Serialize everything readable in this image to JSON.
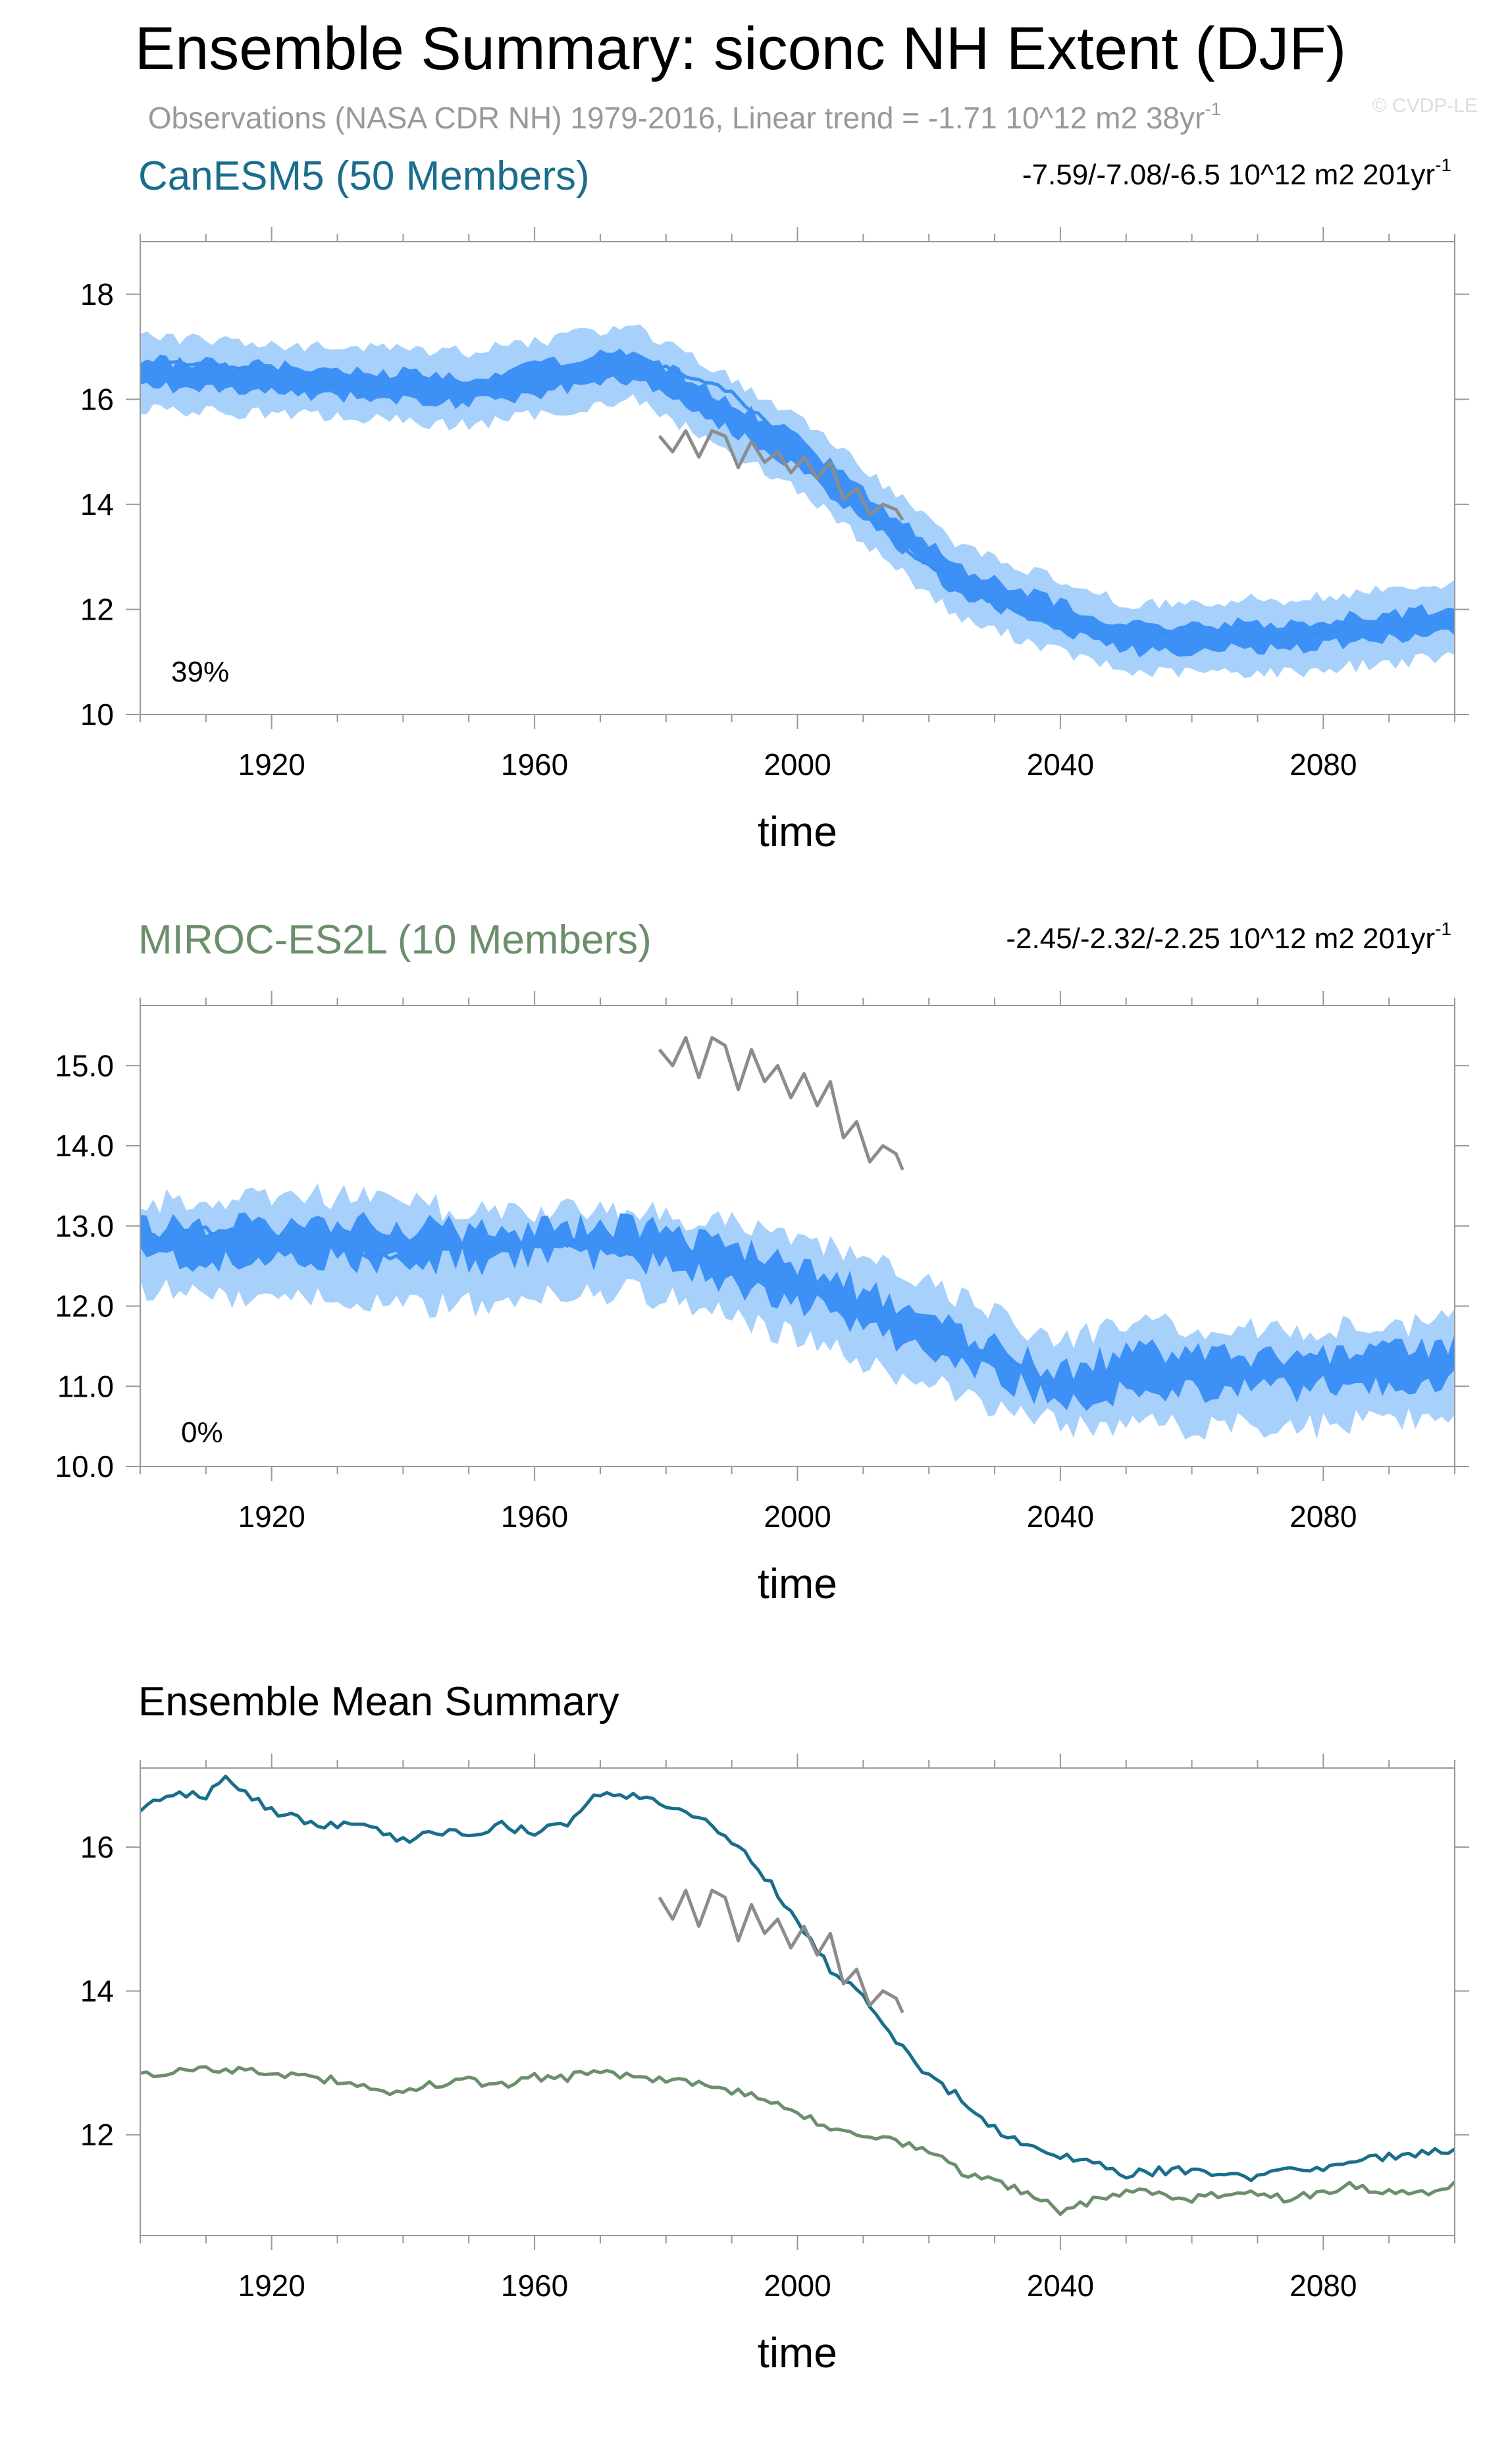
{
  "title": "Ensemble Summary: siconc NH Extent (DJF)",
  "observations_note": "Observations (NASA CDR NH) 1979-2016, Linear trend = -1.71 10^12 m2 38yr",
  "observations_note_sup": "-1",
  "watermark": "© CVDP-LE",
  "colors": {
    "canesm5": "#1a6e8c",
    "miroc": "#6b8f6b",
    "obs": "#8c8c8c",
    "ens_mean_line": "#3a8ff0",
    "spread_inner": "#3d90f5",
    "spread_outer": "#a7d0fb"
  },
  "chart_data": [
    {
      "type": "area",
      "panel_title": "CanESM5 (50 Members)",
      "trend_text": "-7.59/-7.08/-6.5 10^12 m2 201yr",
      "trend_sup": "-1",
      "percent_label": "39%",
      "xlabel": "time",
      "ylabel": "",
      "xlim": [
        1900,
        2100
      ],
      "ylim": [
        10,
        19
      ],
      "x_ticks": [
        1920,
        1960,
        2000,
        2040,
        2080
      ],
      "y_ticks": [
        10,
        12,
        14,
        16,
        18
      ],
      "y_tick_labels": [
        "10",
        "12",
        "14",
        "16",
        "18"
      ],
      "series": [
        {
          "name": "ensemble_mean",
          "x": [
            1900,
            1905,
            1910,
            1915,
            1920,
            1925,
            1930,
            1935,
            1940,
            1945,
            1950,
            1955,
            1960,
            1965,
            1970,
            1975,
            1980,
            1985,
            1990,
            1995,
            2000,
            2005,
            2010,
            2015,
            2020,
            2025,
            2030,
            2035,
            2040,
            2045,
            2050,
            2055,
            2060,
            2065,
            2070,
            2075,
            2080,
            2085,
            2090,
            2095,
            2100
          ],
          "values": [
            16.5,
            16.7,
            16.7,
            16.6,
            16.5,
            16.35,
            16.3,
            16.3,
            16.1,
            16.2,
            16.2,
            16.3,
            16.2,
            16.3,
            16.7,
            16.7,
            16.6,
            16.4,
            16.1,
            15.6,
            15.0,
            14.3,
            13.9,
            13.3,
            12.8,
            12.5,
            12.1,
            11.9,
            11.7,
            11.6,
            11.45,
            11.5,
            11.5,
            11.5,
            11.4,
            11.5,
            11.6,
            11.7,
            11.7,
            11.8,
            11.8
          ]
        },
        {
          "name": "spread_25_75",
          "x": [
            1900,
            1925,
            1950,
            1975,
            2000,
            2025,
            2050,
            2075,
            2100
          ],
          "low": [
            16.25,
            16.1,
            15.9,
            16.4,
            14.7,
            12.25,
            11.2,
            11.25,
            11.55
          ],
          "high": [
            16.75,
            16.6,
            16.45,
            16.95,
            15.3,
            12.75,
            11.7,
            11.75,
            12.05
          ]
        },
        {
          "name": "spread_min_max",
          "x": [
            1900,
            1925,
            1950,
            1975,
            2000,
            2025,
            2050,
            2075,
            2100
          ],
          "low": [
            15.8,
            15.7,
            15.5,
            16.0,
            14.3,
            11.8,
            10.8,
            10.8,
            11.1
          ],
          "high": [
            17.2,
            17.0,
            16.9,
            17.4,
            15.7,
            13.2,
            12.1,
            12.2,
            12.5
          ]
        },
        {
          "name": "observations",
          "x": [
            1979,
            1981,
            1983,
            1985,
            1987,
            1989,
            1991,
            1993,
            1995,
            1997,
            1999,
            2001,
            2003,
            2005,
            2007,
            2009,
            2011,
            2013,
            2015,
            2016
          ],
          "values": [
            15.3,
            15.0,
            15.4,
            14.9,
            15.4,
            15.3,
            14.7,
            15.2,
            14.8,
            15.0,
            14.6,
            14.9,
            14.5,
            14.8,
            14.1,
            14.3,
            13.8,
            14.0,
            13.9,
            13.7
          ]
        }
      ]
    },
    {
      "type": "area",
      "panel_title": "MIROC-ES2L (10 Members)",
      "trend_text": "-2.45/-2.32/-2.25 10^12 m2 201yr",
      "trend_sup": "-1",
      "percent_label": "0%",
      "xlabel": "time",
      "ylabel": "",
      "xlim": [
        1900,
        2100
      ],
      "ylim": [
        10,
        15.75
      ],
      "x_ticks": [
        1920,
        1960,
        2000,
        2040,
        2080
      ],
      "y_ticks": [
        10,
        11,
        12,
        13,
        14,
        15
      ],
      "y_tick_labels": [
        "10.0",
        "11.0",
        "12.0",
        "13.0",
        "14.0",
        "15.0"
      ],
      "series": [
        {
          "name": "ensemble_mean",
          "x": [
            1900,
            1905,
            1910,
            1915,
            1920,
            1925,
            1930,
            1935,
            1940,
            1945,
            1950,
            1955,
            1960,
            1965,
            1970,
            1975,
            1980,
            1985,
            1990,
            1995,
            2000,
            2005,
            2010,
            2015,
            2020,
            2025,
            2030,
            2035,
            2040,
            2045,
            2050,
            2055,
            2060,
            2065,
            2070,
            2075,
            2080,
            2085,
            2090,
            2095,
            2100
          ],
          "values": [
            12.8,
            12.9,
            12.95,
            12.9,
            12.85,
            12.8,
            12.75,
            12.65,
            12.6,
            12.7,
            12.75,
            12.7,
            12.8,
            12.8,
            12.85,
            12.8,
            12.75,
            12.7,
            12.6,
            12.5,
            12.3,
            12.1,
            12.0,
            11.9,
            11.8,
            11.5,
            11.35,
            11.2,
            10.95,
            11.1,
            11.2,
            11.2,
            11.1,
            11.2,
            11.2,
            11.1,
            11.2,
            11.3,
            11.2,
            11.2,
            11.3
          ]
        },
        {
          "name": "spread_25_75",
          "x": [
            1900,
            1925,
            1950,
            1975,
            2000,
            2025,
            2040,
            2050,
            2075,
            2100
          ],
          "low": [
            12.6,
            12.55,
            12.55,
            12.6,
            12.05,
            11.3,
            10.8,
            10.95,
            10.95,
            11.05
          ],
          "high": [
            13.0,
            13.05,
            12.95,
            13.0,
            12.55,
            11.7,
            11.15,
            11.45,
            11.35,
            11.5
          ]
        },
        {
          "name": "spread_min_max",
          "x": [
            1900,
            1925,
            1950,
            1975,
            2000,
            2025,
            2040,
            2050,
            2075,
            2100
          ],
          "low": [
            12.2,
            12.1,
            12.0,
            12.2,
            11.6,
            10.9,
            10.5,
            10.5,
            10.5,
            10.6
          ],
          "high": [
            13.3,
            13.4,
            13.2,
            13.2,
            12.9,
            12.1,
            11.5,
            11.8,
            11.7,
            11.8
          ]
        },
        {
          "name": "observations",
          "x": [
            1979,
            1981,
            1983,
            1985,
            1987,
            1989,
            1991,
            1993,
            1995,
            1997,
            1999,
            2001,
            2003,
            2005,
            2007,
            2009,
            2011,
            2013,
            2015,
            2016
          ],
          "values": [
            15.2,
            15.0,
            15.35,
            14.85,
            15.35,
            15.25,
            14.7,
            15.2,
            14.8,
            15.0,
            14.6,
            14.9,
            14.5,
            14.8,
            14.1,
            14.3,
            13.8,
            14.0,
            13.9,
            13.7
          ]
        }
      ]
    },
    {
      "type": "line",
      "panel_title": "Ensemble Mean Summary",
      "xlabel": "time",
      "ylabel": "",
      "xlim": [
        1900,
        2100
      ],
      "ylim": [
        10.6,
        17.1
      ],
      "x_ticks": [
        1920,
        1960,
        2000,
        2040,
        2080
      ],
      "y_ticks": [
        12,
        14,
        16
      ],
      "y_tick_labels": [
        "12",
        "14",
        "16"
      ],
      "series": [
        {
          "name": "CanESM5",
          "color_key": "canesm5",
          "x": [
            1900,
            1905,
            1910,
            1913,
            1915,
            1920,
            1925,
            1930,
            1935,
            1940,
            1945,
            1950,
            1955,
            1960,
            1965,
            1970,
            1975,
            1980,
            1985,
            1990,
            1995,
            2000,
            2005,
            2010,
            2015,
            2020,
            2025,
            2030,
            2035,
            2040,
            2045,
            2050,
            2055,
            2060,
            2065,
            2070,
            2075,
            2080,
            2085,
            2090,
            2095,
            2100
          ],
          "values": [
            16.5,
            16.75,
            16.7,
            16.95,
            16.8,
            16.5,
            16.35,
            16.3,
            16.3,
            16.1,
            16.2,
            16.2,
            16.3,
            16.2,
            16.35,
            16.75,
            16.7,
            16.6,
            16.4,
            16.1,
            15.6,
            15.0,
            14.3,
            13.9,
            13.3,
            12.8,
            12.5,
            12.1,
            11.85,
            11.7,
            11.6,
            11.45,
            11.5,
            11.5,
            11.45,
            11.4,
            11.5,
            11.55,
            11.65,
            11.7,
            11.75,
            11.8
          ]
        },
        {
          "name": "MIROC-ES2L",
          "color_key": "miroc",
          "x": [
            1900,
            1905,
            1910,
            1915,
            1920,
            1925,
            1930,
            1935,
            1940,
            1945,
            1950,
            1955,
            1960,
            1965,
            1970,
            1975,
            1980,
            1985,
            1990,
            1995,
            2000,
            2005,
            2010,
            2015,
            2020,
            2025,
            2030,
            2035,
            2040,
            2045,
            2050,
            2055,
            2060,
            2065,
            2070,
            2075,
            2080,
            2085,
            2090,
            2095,
            2100
          ],
          "values": [
            12.8,
            12.9,
            12.95,
            12.9,
            12.85,
            12.8,
            12.75,
            12.65,
            12.6,
            12.7,
            12.75,
            12.7,
            12.8,
            12.8,
            12.85,
            12.8,
            12.75,
            12.7,
            12.6,
            12.5,
            12.3,
            12.1,
            12.0,
            11.9,
            11.8,
            11.5,
            11.35,
            11.2,
            10.95,
            11.1,
            11.2,
            11.2,
            11.1,
            11.2,
            11.2,
            11.1,
            11.2,
            11.3,
            11.2,
            11.2,
            11.3
          ]
        },
        {
          "name": "Observations",
          "color_key": "obs",
          "x": [
            1979,
            1981,
            1983,
            1985,
            1987,
            1989,
            1991,
            1993,
            1995,
            1997,
            1999,
            2001,
            2003,
            2005,
            2007,
            2009,
            2011,
            2013,
            2015,
            2016
          ],
          "values": [
            15.3,
            15.0,
            15.4,
            14.9,
            15.4,
            15.3,
            14.7,
            15.2,
            14.8,
            15.0,
            14.6,
            14.9,
            14.5,
            14.8,
            14.1,
            14.3,
            13.8,
            14.0,
            13.9,
            13.7
          ]
        }
      ]
    }
  ]
}
